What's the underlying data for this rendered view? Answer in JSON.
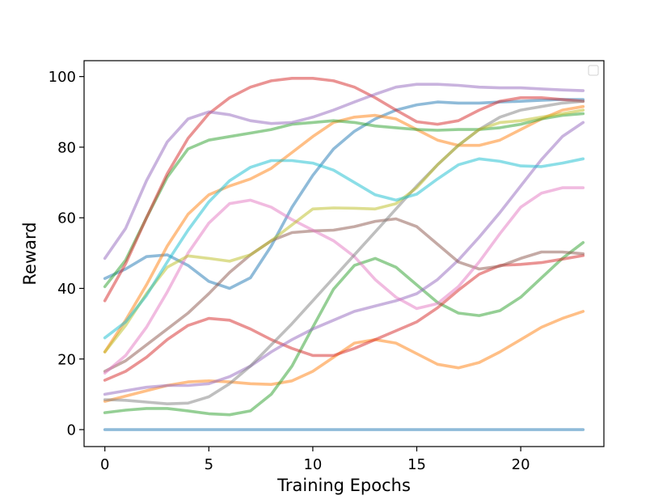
{
  "chart_data": {
    "type": "line",
    "title": "",
    "xlabel": "Training Epochs",
    "ylabel": "Reward",
    "xlim": [
      -1.0,
      24.0
    ],
    "ylim": [
      -4.8,
      104.5
    ],
    "xticks": [
      0,
      5,
      10,
      15,
      20
    ],
    "yticks": [
      0,
      20,
      40,
      60,
      80,
      100
    ],
    "grid": false,
    "legend": "top-right, empty",
    "x": [
      0,
      1,
      2,
      3,
      4,
      5,
      6,
      7,
      8,
      9,
      10,
      11,
      12,
      13,
      14,
      15,
      16,
      17,
      18,
      19,
      20,
      21,
      22,
      23
    ],
    "series": [
      {
        "color": "#1f77b4",
        "values": [
          0,
          0,
          0,
          0,
          0,
          0,
          0,
          0,
          0,
          0,
          0,
          0,
          0,
          0,
          0,
          0,
          0,
          0,
          0,
          0,
          0,
          0,
          0,
          0
        ]
      },
      {
        "color": "#1f77b4",
        "values": [
          42.8,
          45.5,
          49,
          49.5,
          46.5,
          42,
          40,
          43,
          52,
          63,
          72,
          79.5,
          84.5,
          88,
          90.5,
          92,
          92.8,
          92.5,
          92.5,
          92.8,
          93,
          93.3,
          93.5,
          93.5
        ]
      },
      {
        "color": "#ff7f0e",
        "values": [
          22,
          31,
          41,
          52,
          61,
          66.5,
          69,
          71,
          74,
          78.5,
          83,
          87,
          88.5,
          89,
          88,
          85,
          82,
          80.5,
          80.5,
          82,
          85,
          88,
          90.5,
          91.5
        ]
      },
      {
        "color": "#ff7f0e",
        "values": [
          8,
          9.5,
          11,
          12.5,
          13.5,
          13.8,
          13.5,
          13,
          12.8,
          13.8,
          16.5,
          20.5,
          24.5,
          25.5,
          24.5,
          21.5,
          18.5,
          17.5,
          19,
          22,
          25.5,
          29,
          31.5,
          33.5
        ]
      },
      {
        "color": "#2ca02c",
        "values": [
          40.5,
          48,
          60,
          71.5,
          79.5,
          82,
          83,
          84,
          85,
          86.5,
          87,
          87.5,
          87,
          86,
          85.5,
          85,
          84.8,
          85,
          85,
          85.5,
          86.5,
          88,
          89,
          89.5
        ]
      },
      {
        "color": "#2ca02c",
        "values": [
          4.8,
          5.5,
          6,
          6,
          5.3,
          4.5,
          4.2,
          5.3,
          10,
          18,
          29,
          39.8,
          46.5,
          48.5,
          46,
          41,
          36,
          33,
          32.3,
          33.7,
          37.5,
          43,
          48.5,
          53
        ]
      },
      {
        "color": "#d62728",
        "values": [
          36.5,
          47,
          60,
          72.5,
          82.5,
          89.5,
          94,
          97,
          98.8,
          99.5,
          99.5,
          98.8,
          97,
          94,
          90.5,
          87.2,
          86.5,
          87.5,
          90.5,
          93,
          94,
          94,
          93.5,
          93
        ]
      },
      {
        "color": "#d62728",
        "values": [
          14,
          16.5,
          20.5,
          25.5,
          29.5,
          31.5,
          31,
          28.5,
          25.5,
          23,
          21,
          21,
          23,
          25.5,
          28,
          30.5,
          34.5,
          39.5,
          44,
          46.5,
          46.8,
          47.3,
          48.3,
          49.3
        ]
      },
      {
        "color": "#9467bd",
        "values": [
          48.5,
          57,
          70.5,
          81.5,
          88,
          90,
          89.2,
          87.5,
          86.7,
          87,
          88.5,
          90.5,
          92.8,
          95,
          97,
          97.8,
          97.8,
          97.5,
          97,
          96.8,
          96.8,
          96.5,
          96.2,
          96
        ]
      },
      {
        "color": "#9467bd",
        "values": [
          10,
          11,
          12,
          12.5,
          12.5,
          13,
          15,
          18,
          22,
          25.5,
          28.5,
          31,
          33.5,
          35,
          36.5,
          38.5,
          42.5,
          48,
          54.5,
          61.5,
          69,
          76.5,
          83,
          87
        ]
      },
      {
        "color": "#8c564b",
        "values": [
          16.5,
          19.5,
          24,
          28.5,
          33,
          38.5,
          44.5,
          49.5,
          53.5,
          55.8,
          56.3,
          56.5,
          57.5,
          59,
          59.7,
          57.5,
          52.5,
          47.5,
          45.5,
          46.3,
          48.5,
          50.3,
          50.3,
          49.8
        ]
      },
      {
        "color": "#e377c2",
        "values": [
          16,
          21,
          29,
          39,
          50,
          58.5,
          64,
          65,
          63,
          59.5,
          56.5,
          53.5,
          49,
          42.5,
          37.5,
          34.3,
          35.7,
          40.5,
          47.5,
          55.5,
          63,
          67,
          68.5,
          68.5
        ]
      },
      {
        "color": "#7f7f7f",
        "values": [
          8.5,
          8.3,
          7.8,
          7.3,
          7.5,
          9.3,
          13,
          18,
          24,
          30,
          36.5,
          43,
          49.5,
          56,
          62.5,
          69,
          75,
          80.5,
          85,
          88.5,
          90.5,
          91.5,
          92.5,
          93
        ]
      },
      {
        "color": "#bcbd22",
        "values": [
          22,
          29.5,
          38.5,
          46,
          49.2,
          48.5,
          47.7,
          49.5,
          53.5,
          58,
          62.5,
          62.8,
          62.7,
          62.5,
          64,
          68.5,
          75,
          80.5,
          85,
          87,
          87.5,
          88.5,
          89.5,
          90.5
        ]
      },
      {
        "color": "#17becf",
        "values": [
          26,
          30.5,
          38,
          47.5,
          56.5,
          64.5,
          70.5,
          74.3,
          76.2,
          76.2,
          75.5,
          73.5,
          70,
          66.5,
          65,
          66.7,
          71,
          75,
          76.7,
          76,
          74.7,
          74.5,
          75.5,
          76.7
        ]
      }
    ]
  }
}
